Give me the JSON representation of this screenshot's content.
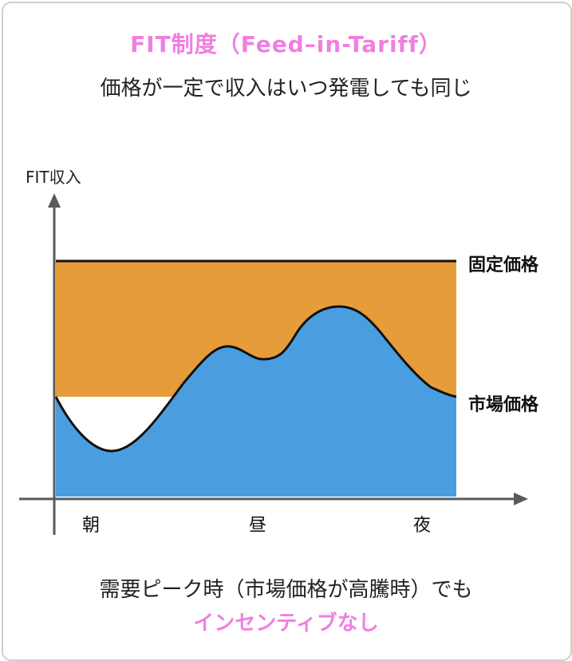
{
  "header": {
    "title": "FIT制度（Feed–in-Tariff）",
    "subtitle": "価格が一定で収入はいつ発電しても同じ"
  },
  "chart": {
    "y_axis_label": "FIT収入",
    "line_fixed_label": "固定価格",
    "line_market_label": "市場価格",
    "x_ticks": [
      "朝",
      "昼",
      "夜"
    ]
  },
  "footer": {
    "line1": "需要ピーク時（市場価格が高騰時）でも",
    "line2": "インセンティブなし"
  },
  "colors": {
    "accent_pink": "#f07fe0",
    "fixed_area": "#e69c3a",
    "market_area": "#4a9ee0",
    "line": "#111111",
    "axis": "#5a5a5a"
  }
}
